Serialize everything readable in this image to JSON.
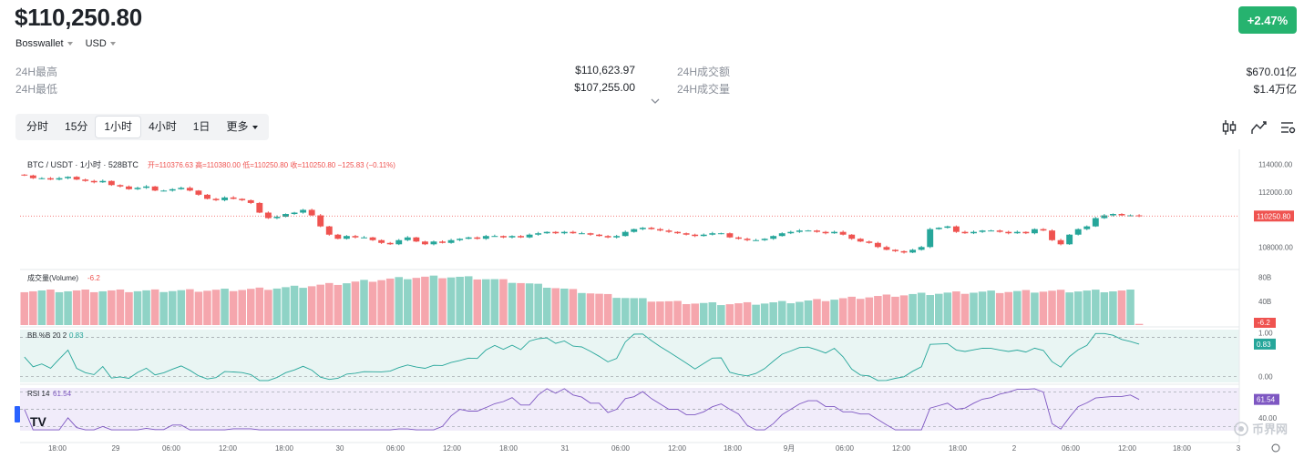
{
  "header": {
    "price": "$110,250.80",
    "change_badge": "+2.47%",
    "exchange": "Bosswallet",
    "currency": "USD"
  },
  "stats": {
    "high_label": "24H最高",
    "high_value": "$110,623.97",
    "low_label": "24H最低",
    "low_value": "$107,255.00",
    "turnover_label": "24H成交额",
    "turnover_value": "$670.01亿",
    "volume_label": "24H成交量",
    "volume_value": "$1.4万亿"
  },
  "tabs": [
    {
      "label": "分时",
      "active": false
    },
    {
      "label": "15分",
      "active": false
    },
    {
      "label": "1小时",
      "active": true
    },
    {
      "label": "4小时",
      "active": false
    },
    {
      "label": "1日",
      "active": false
    },
    {
      "label": "更多",
      "active": false,
      "dropdown": true
    }
  ],
  "toolbar_icons": [
    "candlestick-icon",
    "line-chart-icon",
    "settings-icon"
  ],
  "watermark": "币界网",
  "tv_logo": "TV",
  "colors": {
    "up": "#26a69a",
    "down": "#ef5350",
    "vol_up": "#8fd3c6",
    "vol_down": "#f5a6ad",
    "bb": "#26a69a",
    "rsi": "#7e57c2",
    "badge": "#26b36f"
  },
  "chart_data": {
    "type": "candlestick",
    "legend": {
      "symbol": "BTC / USDT · 1小时 · 528BTC",
      "ohlc_text": "开=110376.63 高=110380.00 低=110250.80 收=110250.80 −125.83 (−0.11%)"
    },
    "y_ticks": [
      114000,
      112000,
      110000,
      108000
    ],
    "y_tick_labels": [
      "114000.00",
      "112000.00",
      "110250.80",
      "108000.00"
    ],
    "ylim": [
      106500,
      114700
    ],
    "last_price": 110250.8,
    "last_price_label": "110250.80",
    "x_labels": [
      "18:00",
      "29",
      "06:00",
      "12:00",
      "18:00",
      "30",
      "06:00",
      "12:00",
      "18:00",
      "31",
      "06:00",
      "12:00",
      "18:00",
      "9月",
      "06:00",
      "12:00",
      "18:00",
      "2",
      "06:00",
      "12:00",
      "18:00",
      "3"
    ],
    "closes": [
      113200,
      113000,
      113000,
      112900,
      113000,
      113100,
      112900,
      112800,
      112700,
      112800,
      112500,
      112400,
      112200,
      112300,
      112400,
      112100,
      112100,
      112200,
      112300,
      112100,
      111800,
      111500,
      111400,
      111600,
      111500,
      111400,
      111200,
      110500,
      110100,
      110200,
      110400,
      110500,
      110700,
      110300,
      109500,
      108900,
      108600,
      108800,
      108700,
      108700,
      108500,
      108300,
      108200,
      108500,
      108700,
      108400,
      108200,
      108400,
      108300,
      108500,
      108600,
      108700,
      108600,
      108800,
      108800,
      108700,
      108800,
      108700,
      108900,
      109000,
      109100,
      109000,
      109100,
      109000,
      109000,
      108900,
      108800,
      108700,
      108800,
      109100,
      109300,
      109400,
      109300,
      109200,
      109100,
      109000,
      108900,
      108800,
      108900,
      109000,
      109000,
      108700,
      108600,
      108500,
      108500,
      108600,
      108800,
      109000,
      109100,
      109200,
      109200,
      109100,
      109000,
      109100,
      108900,
      108600,
      108400,
      108300,
      108000,
      107800,
      107700,
      107600,
      107800,
      108000,
      109300,
      109400,
      109500,
      109100,
      109000,
      109100,
      109200,
      109200,
      109100,
      109000,
      109100,
      109000,
      109300,
      109200,
      108500,
      108200,
      108900,
      109300,
      109500,
      110100,
      110300,
      110400,
      110300,
      110300,
      110250.8
    ],
    "volume": {
      "label": "成交量(Volume)",
      "value": -6.2,
      "value_label": "-6.2",
      "axis_labels": [
        "80B",
        "40B"
      ],
      "ylim": [
        0,
        90
      ]
    },
    "bb": {
      "label": "BB %B 20 2",
      "value_label": "0.83",
      "axis_labels": [
        "1.00",
        "0.00"
      ],
      "ylim": [
        -0.15,
        1.2
      ],
      "last": 0.83
    },
    "rsi": {
      "label": "RSI 14",
      "value_label": "61.54",
      "axis_labels": [
        "40.00"
      ],
      "ylim": [
        25,
        75
      ],
      "last": 61.54
    }
  }
}
